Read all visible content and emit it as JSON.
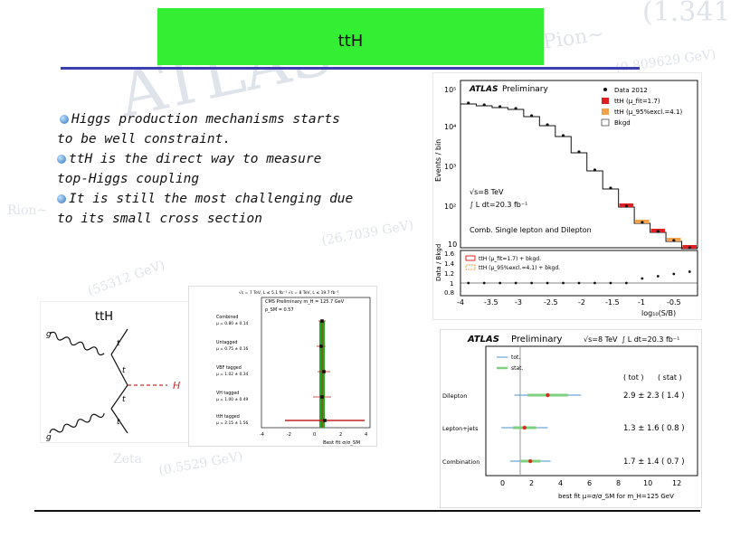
{
  "slide": {
    "title": "ttH",
    "bullets": [
      "Higgs production mechanisms starts to be well constraint.",
      "ttH is the direct way to measure top-Higgs coupling",
      "It is still the most challenging due to its small cross section"
    ],
    "bullet_icon": "sphere-bullet-icon",
    "colors": {
      "title_bg": "#33ee33",
      "rule": "#3b3fb0"
    }
  },
  "feynman": {
    "label": "ttH",
    "g_top": "g",
    "g_bottom": "g",
    "t_top": "t",
    "t_mid1": "t",
    "t_mid2": "t",
    "t_bottom": "t",
    "higgs": "H"
  },
  "atlas_hist": {
    "experiment": "ATLAS",
    "status": "Preliminary",
    "energy": "√s=8 TeV",
    "lumi": "∫ L dt=20.3 fb⁻¹",
    "selection": "Comb. Single lepton and Dilepton",
    "ylabel": "Events / bin",
    "xlabel": "log₁₀(S/B)",
    "ratio_ylabel": "Data / Bkgd",
    "legend": [
      "Data 2012",
      "ttH (μ_fit=1.7)",
      "ttH (μ_95%excl.=4.1)",
      "Bkgd"
    ],
    "ratio_legend": [
      "ttH (μ_fit=1.7) + bkgd.",
      "ttH (μ_95%excl.=4.1) + bkgd."
    ],
    "y_ticks": [
      "10⁵",
      "10⁴",
      "10³",
      "10²",
      "10"
    ],
    "ratio_ticks": [
      "1.6",
      "1.4",
      "1.2",
      "1",
      "0.8"
    ],
    "x_ticks": [
      "-4",
      "-3.5",
      "-3",
      "-2.5",
      "-2",
      "-1.5",
      "-1",
      "-0.5"
    ]
  },
  "cms_plot": {
    "header": "√s = 7 TeV, L ≤ 5.1 fb⁻¹  √s = 8 TeV, L ≤ 19.7 fb⁻¹",
    "subheader": "CMS Preliminary    m_H = 125.7 GeV",
    "pvalue": "p_SM = 0.57",
    "categories": [
      "Combined",
      "Untagged",
      "VBF tagged",
      "VH tagged",
      "ttH tagged"
    ],
    "values": [
      "μ = 0.80 ± 0.14",
      "μ = 0.75 ± 0.16",
      "μ = 1.02 ± 0.34",
      "μ = 1.00 ± 0.49",
      "μ = 2.15 ± 1.56"
    ],
    "x_ticks": [
      "-4",
      "-2",
      "0",
      "2",
      "4"
    ],
    "xlabel": "Best fit σ/σ_SM"
  },
  "atlas_mu": {
    "experiment": "ATLAS",
    "status": "Preliminary",
    "energy": "√s=8 TeV",
    "lumi": "∫ L dt=20.3 fb⁻¹",
    "legend": [
      "tot.",
      "stat."
    ],
    "col_headers": [
      "( tot )",
      "( stat )"
    ],
    "rows": [
      {
        "name": "Dilepton",
        "value": "2.9 ± 2.3",
        "stat": "( 1.4 )"
      },
      {
        "name": "Lepton+jets",
        "value": "1.3 ± 1.6",
        "stat": "( 0.8 )"
      },
      {
        "name": "Combination",
        "value": "1.7 ± 1.4",
        "stat": "( 0.7 )"
      }
    ],
    "x_ticks": [
      "0",
      "2",
      "4",
      "6",
      "8",
      "10",
      "12"
    ],
    "xlabel": "best fit μ=σ/σ_SM for m_H=125 GeV"
  },
  "watermarks": [
    "ATLAS",
    "(1.341",
    "(0.809629 GeV)",
    "Pion~",
    "(55312 GeV)",
    "(0.5529 GeV)",
    "Zeta",
    "Rion~",
    "(26.7039 GeV)"
  ]
}
